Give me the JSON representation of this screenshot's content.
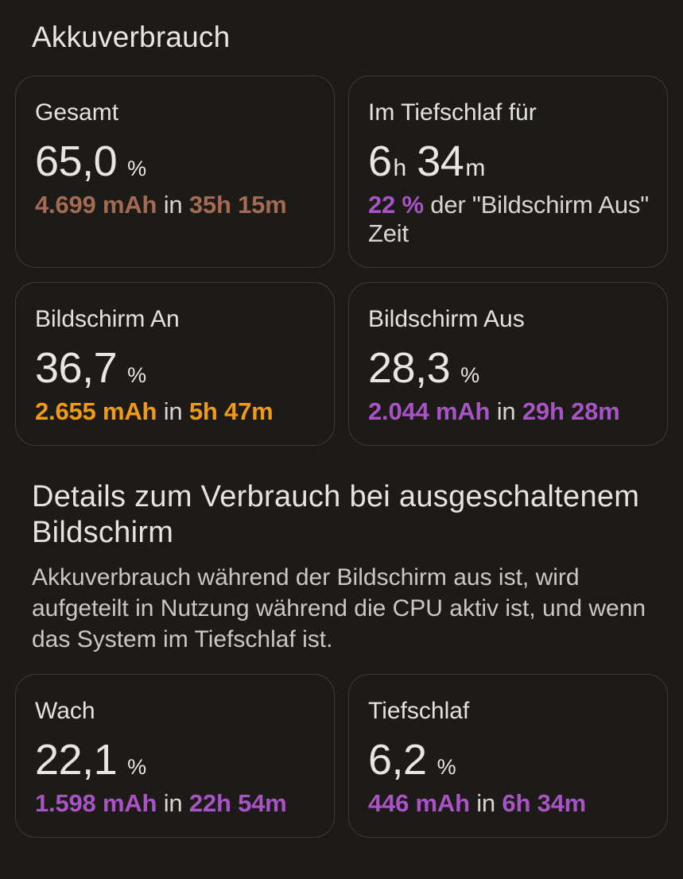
{
  "page": {
    "title": "Akkuverbrauch",
    "background": "#1C1B17",
    "card_border": "#3C3B36"
  },
  "colors": {
    "terracotta": "#A56A52",
    "orange": "#F39B0E",
    "purple": "#A953C6",
    "text_primary": "#E8E6E2",
    "text_secondary": "#D8D5D0",
    "paragraph": "#CBC8C3"
  },
  "cards": [
    {
      "label": "Gesamt",
      "value": "65,0",
      "unit": "%",
      "accent": "#A56A52",
      "detail": {
        "amount": "4.699 mAh",
        "connector": "in",
        "duration": "35h 15m"
      }
    },
    {
      "label": "Im Tiefschlaf für",
      "value": {
        "hours": "6",
        "hours_unit": "h",
        "minutes": "34",
        "minutes_unit": "m"
      },
      "accent": "#A953C6",
      "detail": {
        "amount": "22 %",
        "rest": "der \"Bildschirm Aus\" Zeit"
      }
    },
    {
      "label": "Bildschirm An",
      "value": "36,7",
      "unit": "%",
      "accent": "#F39B0E",
      "detail": {
        "amount": "2.655 mAh",
        "connector": "in",
        "duration": "5h 47m"
      }
    },
    {
      "label": "Bildschirm Aus",
      "value": "28,3",
      "unit": "%",
      "accent": "#A953C6",
      "detail": {
        "amount": "2.044 mAh",
        "connector": "in",
        "duration": "29h 28m"
      }
    },
    {
      "label": "Wach",
      "value": "22,1",
      "unit": "%",
      "accent": "#A953C6",
      "detail": {
        "amount": "1.598 mAh",
        "connector": "in",
        "duration": "22h 54m"
      }
    },
    {
      "label": "Tiefschlaf",
      "value": "6,2",
      "unit": "%",
      "accent": "#A953C6",
      "detail": {
        "amount": "446 mAh",
        "connector": "in",
        "duration": "6h 34m"
      }
    }
  ],
  "section": {
    "heading": "Details zum Verbrauch bei ausgeschaltenem Bildschirm",
    "body": "Akkuverbrauch während der Bildschirm aus ist, wird aufgeteilt in Nutzung während die CPU aktiv ist, und wenn das System im Tiefschlaf ist."
  }
}
